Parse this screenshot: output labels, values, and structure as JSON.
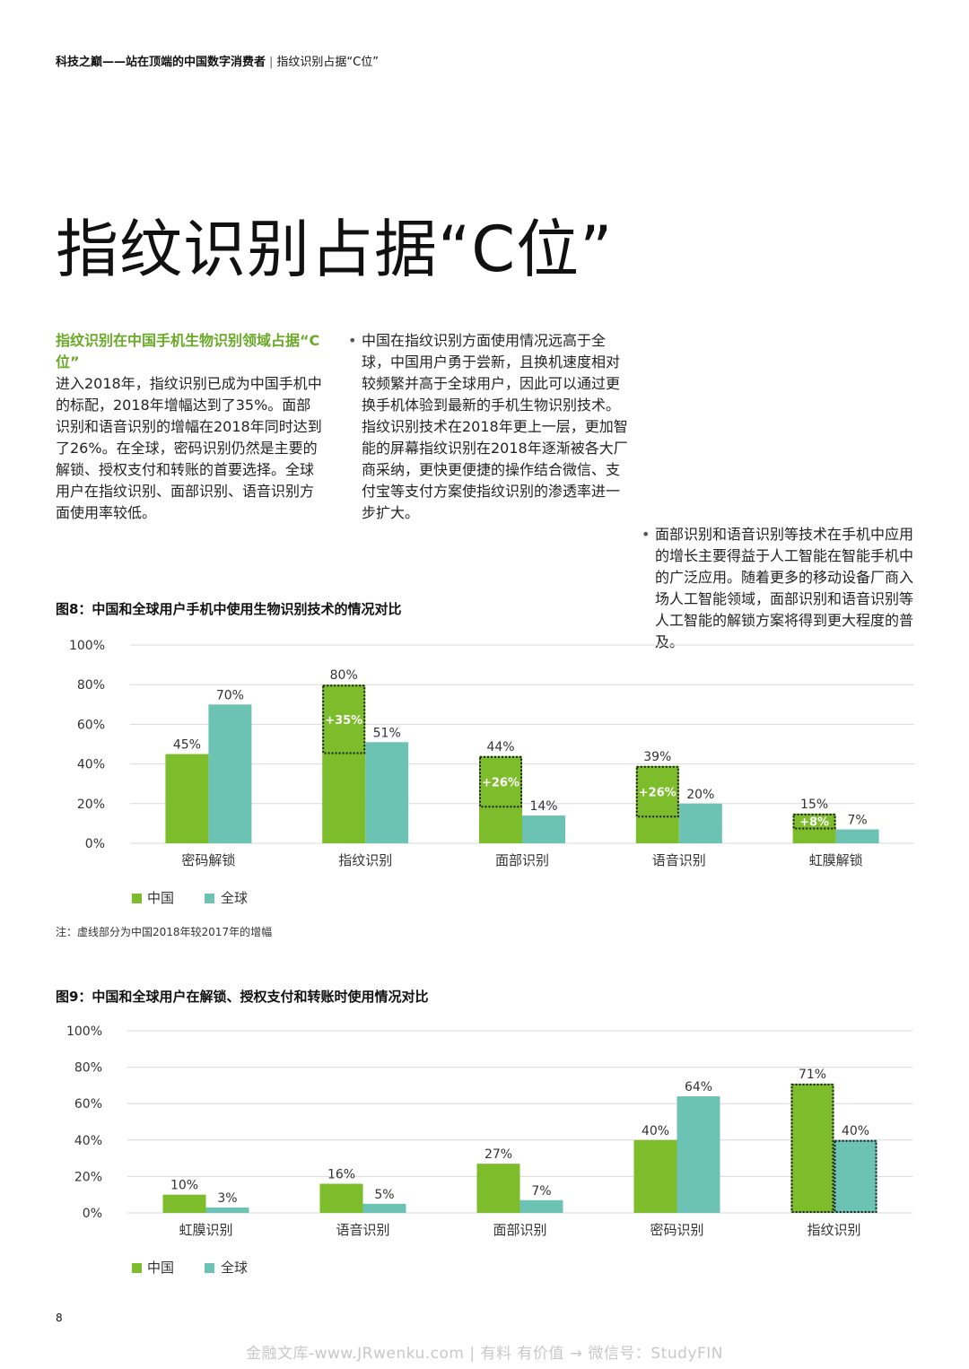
{
  "header": {
    "title": "科技之巅——站在顶端的中国数字消费者",
    "separator": "|",
    "subtitle": "指纹识别占据“C位”"
  },
  "page_title": "指纹识别占据“C位”",
  "columns": {
    "col1": {
      "lead": "指纹识别在中国手机生物识别领域占据“C位”",
      "body": "进入2018年，指纹识别已成为中国手机中的标配，2018年增幅达到了35%。面部识别和语音识别的增幅在2018年同时达到了26%。在全球，密码识别仍然是主要的解锁、授权支付和转账的首要选择。全球用户在指纹识别、面部识别、语音识别方面使用率较低。"
    },
    "col2": {
      "bullet": "•",
      "body": "中国在指纹识别方面使用情况远高于全球，中国用户勇于尝新，且换机速度相对较频繁并高于全球用户，因此可以通过更换手机体验到最新的手机生物识别技术。指纹识别技术在2018年更上一层，更加智能的屏幕指纹识别在2018年逐渐被各大厂商采纳，更快更便捷的操作结合微信、支付宝等支付方案使指纹识别的渗透率进一步扩大。"
    },
    "col3": {
      "bullet": "•",
      "body": "面部识别和语音识别等技术在手机中应用的增长主要得益于人工智能在智能手机中的广泛应用。随着更多的移动设备厂商入场人工智能领域，面部识别和语音识别等人工智能的解锁方案将得到更大程度的普及。"
    }
  },
  "fig8": {
    "title": "图8：中国和全球用户手机中使用生物识别技术的情况对比",
    "note": "注：虚线部分为中国2018年较2017年的增幅"
  },
  "fig9": {
    "title": "图9：中国和全球用户在解锁、授权支付和转账时使用情况对比"
  },
  "colors": {
    "china": "#7dbd2c",
    "global": "#6cc2b3",
    "grid": "#d9d9d9",
    "accent": "#6aa927"
  },
  "chart_data": [
    {
      "type": "bar",
      "categories": [
        "密码解锁",
        "指纹识别",
        "面部识别",
        "语音识别",
        "虹膜解锁"
      ],
      "series": [
        {
          "name": "中国",
          "values": [
            45,
            80,
            44,
            39,
            15
          ],
          "labels": [
            "45%",
            "80%",
            "44%",
            "39%",
            "15%"
          ]
        },
        {
          "name": "全球",
          "values": [
            70,
            51,
            14,
            20,
            7
          ],
          "labels": [
            "70%",
            "51%",
            "14%",
            "20%",
            "7%"
          ]
        }
      ],
      "increments": [
        null,
        35,
        26,
        26,
        8
      ],
      "increment_labels": [
        "",
        "+35%",
        "+26%",
        "+26%",
        "+8%"
      ],
      "ylim": [
        0,
        100
      ],
      "yticks": [
        "0%",
        "20%",
        "40%",
        "60%",
        "80%",
        "100%"
      ],
      "grid": true,
      "legend": "bottom-left"
    },
    {
      "type": "bar",
      "categories": [
        "虹膜识别",
        "语音识别",
        "面部识别",
        "密码识别",
        "指纹识别"
      ],
      "series": [
        {
          "name": "中国",
          "values": [
            10,
            16,
            27,
            40,
            71
          ],
          "labels": [
            "10%",
            "16%",
            "27%",
            "40%",
            "71%"
          ]
        },
        {
          "name": "全球",
          "values": [
            3,
            5,
            7,
            64,
            40
          ],
          "labels": [
            "3%",
            "5%",
            "7%",
            "64%",
            "40%"
          ]
        }
      ],
      "highlight_category": "指纹识别",
      "ylim": [
        0,
        100
      ],
      "yticks": [
        "0%",
        "20%",
        "40%",
        "60%",
        "80%",
        "100%"
      ],
      "grid": true,
      "legend": "bottom-left"
    }
  ],
  "page_number": "8",
  "watermark": "金融文库-www.JRwenku.com | 有料  有价值 → 微信号：StudyFIN"
}
